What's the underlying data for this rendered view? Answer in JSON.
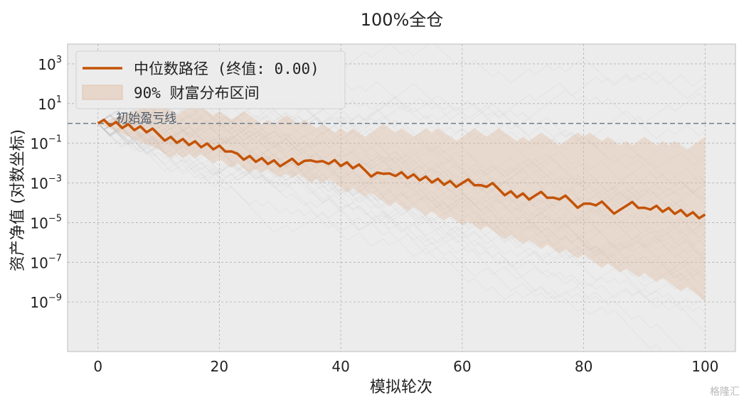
{
  "chart_data": {
    "type": "line",
    "title": "100%全仓",
    "xlabel": "模拟轮次",
    "ylabel": "资产净值 (对数坐标)",
    "xlim": [
      -5,
      105
    ],
    "ylim_log10": [
      -11.5,
      4
    ],
    "y_scale": "log",
    "grid": true,
    "legend_position": "top-left",
    "x_ticks": [
      0,
      20,
      40,
      60,
      80,
      100
    ],
    "y_ticks": [
      {
        "base": "10",
        "exp": "3",
        "log10": 3
      },
      {
        "base": "10",
        "exp": "1",
        "log10": 1
      },
      {
        "base": "10",
        "exp": "−1",
        "log10": -1
      },
      {
        "base": "10",
        "exp": "−3",
        "log10": -3
      },
      {
        "base": "10",
        "exp": "−5",
        "log10": -5
      },
      {
        "base": "10",
        "exp": "−7",
        "log10": -7
      },
      {
        "base": "10",
        "exp": "−9",
        "log10": -9
      }
    ],
    "reference_line": {
      "y_log10": 0,
      "label": "初始盈亏线"
    },
    "series": [
      {
        "name": "中位数路径 (终值: 0.00)",
        "color": "#c45306",
        "x": [
          0,
          1,
          2,
          3,
          4,
          5,
          6,
          7,
          8,
          9,
          10,
          11,
          12,
          13,
          14,
          15,
          16,
          17,
          18,
          19,
          20,
          21,
          22,
          23,
          24,
          25,
          26,
          27,
          28,
          29,
          30,
          31,
          32,
          33,
          34,
          35,
          36,
          37,
          38,
          39,
          40,
          41,
          42,
          43,
          44,
          45,
          46,
          47,
          48,
          49,
          50,
          51,
          52,
          53,
          54,
          55,
          56,
          57,
          58,
          59,
          60,
          61,
          62,
          63,
          64,
          65,
          66,
          67,
          68,
          69,
          70,
          71,
          72,
          73,
          74,
          75,
          76,
          77,
          78,
          79,
          80,
          81,
          82,
          83,
          84,
          85,
          86,
          87,
          88,
          89,
          90,
          91,
          92,
          93,
          94,
          95,
          96,
          97,
          98,
          99,
          100
        ],
        "y_log10": [
          0,
          0.18,
          -0.12,
          0.07,
          -0.23,
          -0.04,
          -0.34,
          -0.15,
          -0.45,
          -0.26,
          -0.56,
          -0.87,
          -0.68,
          -0.98,
          -0.79,
          -1.09,
          -0.9,
          -1.2,
          -1.01,
          -1.31,
          -1.12,
          -1.42,
          -1.41,
          -1.53,
          -1.83,
          -1.64,
          -1.94,
          -1.75,
          -2.05,
          -1.86,
          -2.16,
          -1.97,
          -1.78,
          -2.08,
          -1.89,
          -1.86,
          -1.94,
          -1.9,
          -2.04,
          -1.85,
          -2.15,
          -1.96,
          -2.26,
          -2.07,
          -2.37,
          -2.68,
          -2.48,
          -2.54,
          -2.52,
          -2.65,
          -2.46,
          -2.76,
          -2.57,
          -2.87,
          -2.68,
          -2.98,
          -2.79,
          -3.09,
          -2.9,
          -3.2,
          -3.01,
          -2.82,
          -3.12,
          -3.11,
          -3.2,
          -3.01,
          -3.31,
          -3.62,
          -3.42,
          -3.73,
          -3.53,
          -3.84,
          -3.64,
          -3.45,
          -3.75,
          -3.74,
          -3.83,
          -3.64,
          -3.94,
          -4.25,
          -4.05,
          -4.04,
          -4.13,
          -3.94,
          -4.24,
          -4.55,
          -4.35,
          -4.16,
          -3.96,
          -4.26,
          -4.25,
          -4.34,
          -4.15,
          -4.45,
          -4.26,
          -4.56,
          -4.37,
          -4.67,
          -4.48,
          -4.78,
          -4.59
        ]
      }
    ],
    "band": {
      "name": "90% 财富分布区间",
      "color": "#e2b698",
      "upper_log10": [
        0,
        0.09,
        0.2,
        0.31,
        0.41,
        0.52,
        0.63,
        0.73,
        0.84,
        0.95,
        1.05,
        0.83,
        0.62,
        0.4,
        0.62,
        0.83,
        1.05,
        0.83,
        0.62,
        0.4,
        0.62,
        0.4,
        0.19,
        0.4,
        0.62,
        0.4,
        0.19,
        -0.03,
        0.19,
        -0.03,
        0.19,
        0.4,
        0.19,
        -0.03,
        0.19,
        -0.03,
        -0.24,
        -0.03,
        -0.24,
        -0.46,
        -0.24,
        -0.46,
        -0.24,
        -0.46,
        -0.67,
        -0.46,
        -0.24,
        -0.03,
        -0.24,
        -0.46,
        -0.24,
        -0.46,
        -0.67,
        -0.46,
        -0.24,
        -0.46,
        -0.24,
        -0.46,
        -0.67,
        -0.89,
        -0.67,
        -0.46,
        -0.24,
        -0.46,
        -0.67,
        -0.46,
        -0.24,
        -0.46,
        -0.67,
        -0.89,
        -0.67,
        -0.89,
        -0.67,
        -0.46,
        -0.67,
        -0.89,
        -1.1,
        -0.89,
        -0.67,
        -0.46,
        -0.67,
        -0.46,
        -0.67,
        -0.89,
        -0.67,
        -0.89,
        -1.1,
        -0.89,
        -1.1,
        -0.89,
        -0.67,
        -0.89,
        -1.1,
        -0.89,
        -1.1,
        -0.89,
        -1.1,
        -1.32,
        -1.1,
        -0.89,
        -0.67
      ],
      "lower_log10": [
        0,
        -0.13,
        -0.26,
        -0.39,
        -0.52,
        -0.65,
        -0.78,
        -0.91,
        -1.04,
        -1.17,
        -1.3,
        -1.52,
        -1.75,
        -1.53,
        -1.76,
        -1.54,
        -1.77,
        -1.55,
        -1.78,
        -2.01,
        -1.79,
        -2.02,
        -2.25,
        -2.03,
        -2.26,
        -2.49,
        -2.27,
        -2.5,
        -2.28,
        -2.51,
        -2.74,
        -2.52,
        -2.75,
        -2.53,
        -2.76,
        -2.99,
        -2.77,
        -3,
        -2.78,
        -3.01,
        -3.24,
        -3.47,
        -3.25,
        -3.48,
        -3.71,
        -3.49,
        -3.72,
        -3.95,
        -4.18,
        -3.96,
        -4.19,
        -4.42,
        -4.2,
        -4.43,
        -4.66,
        -4.44,
        -4.67,
        -4.9,
        -4.68,
        -4.91,
        -5.14,
        -4.92,
        -5.15,
        -5.38,
        -5.16,
        -5.39,
        -5.62,
        -5.85,
        -5.63,
        -5.86,
        -6.09,
        -5.87,
        -6.1,
        -6.33,
        -6.11,
        -6.34,
        -6.57,
        -6.35,
        -6.58,
        -6.81,
        -6.59,
        -6.82,
        -7.05,
        -7.28,
        -7.06,
        -7.29,
        -7.52,
        -7.3,
        -7.53,
        -7.76,
        -7.54,
        -7.77,
        -8,
        -7.78,
        -8.01,
        -8.24,
        -8.47,
        -8.25,
        -8.48,
        -8.71,
        -9
      ]
    }
  },
  "watermark": "格隆汇"
}
